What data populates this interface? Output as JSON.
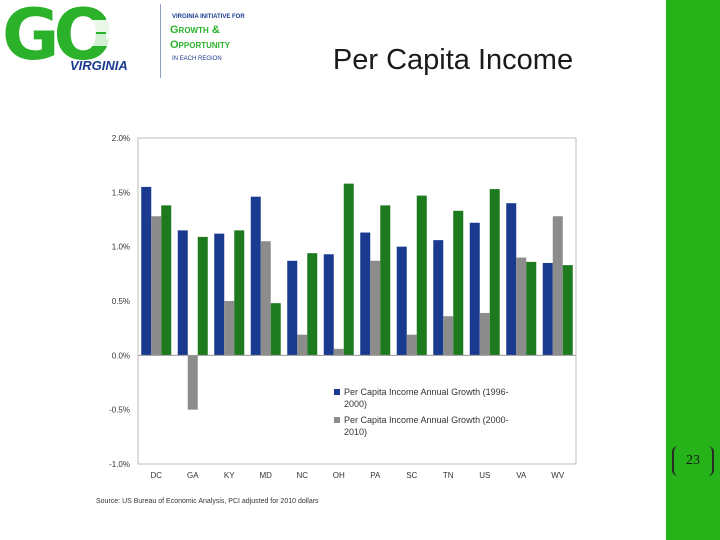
{
  "logo": {
    "go": "GO",
    "virginia": "VIRGINIA",
    "line1": "VIRGINIA INITIATIVE FOR",
    "line2": "Growth &",
    "line3": "Opportunity",
    "line4": "IN EACH REGION"
  },
  "slide": {
    "title": "Per Capita Income",
    "page_number": "23",
    "source": "Source: US Bureau of Economic Analysis, PCI adjusted for 2010 dollars"
  },
  "colors": {
    "series_1996_2000": "#1a3a8f",
    "series_2000_2010": "#8c8c8c",
    "highlight_bar": "#1e7a1e",
    "accent_band": "#26b31a"
  },
  "chart_data": {
    "type": "bar",
    "categories": [
      "DC",
      "GA",
      "KY",
      "MD",
      "NC",
      "OH",
      "PA",
      "SC",
      "TN",
      "US",
      "VA",
      "WV"
    ],
    "series": [
      {
        "name": "Per Capita Income Annual Growth (1996-2000)",
        "values": [
          1.55,
          1.15,
          1.12,
          1.46,
          0.87,
          0.93,
          1.13,
          1.0,
          1.06,
          1.22,
          1.4,
          0.85
        ]
      },
      {
        "name": "Per Capita Income Annual Growth (2000-2010)",
        "values": [
          1.28,
          -0.5,
          0.5,
          1.05,
          0.19,
          0.06,
          0.87,
          0.19,
          0.36,
          0.39,
          0.9,
          1.28
        ]
      },
      {
        "name": "",
        "values": [
          1.38,
          1.09,
          1.15,
          0.48,
          0.94,
          1.58,
          1.38,
          1.47,
          1.33,
          1.53,
          0.86,
          0.83
        ]
      }
    ],
    "ylim": [
      -1.0,
      2.0
    ],
    "yticks": [
      -1.0,
      -0.5,
      0.0,
      0.5,
      1.0,
      1.5,
      2.0
    ],
    "ytick_labels": [
      "-1.0%",
      "-0.5%",
      "0.0%",
      "0.5%",
      "1.0%",
      "1.5%",
      "2.0%"
    ],
    "legend": [
      "Per Capita Income Annual Growth (1996-2000)",
      "Per Capita Income Annual Growth (2000-2010)"
    ],
    "legend_position": "bottom-right",
    "grid": false
  }
}
